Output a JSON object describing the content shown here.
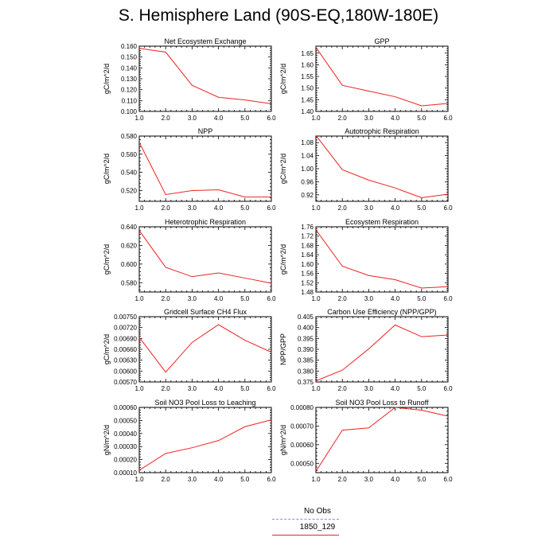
{
  "title": "S. Hemisphere Land (90S-EQ,180W-180E)",
  "xticks": [
    "1.0",
    "2.0",
    "3.0",
    "4.0",
    "5.0",
    "6.0"
  ],
  "legend": {
    "entries": [
      {
        "label": "No Obs",
        "color": "#8888ee",
        "style": "dashed"
      },
      {
        "label": "1850_129",
        "color": "#ee2222",
        "style": "solid"
      }
    ]
  },
  "chart_data": [
    {
      "type": "line",
      "title": "Net Ecosystem Exchange",
      "ylabel": "gC/m^2/d",
      "x": [
        1,
        2,
        3,
        4,
        5,
        6
      ],
      "xlim": [
        1,
        6
      ],
      "ylim": [
        0.1,
        0.16
      ],
      "yticks": [
        "0.100",
        "0.110",
        "0.120",
        "0.130",
        "0.140",
        "0.150",
        "0.160"
      ],
      "series": [
        {
          "values": [
            0.158,
            0.1545,
            0.124,
            0.113,
            0.1105,
            0.107
          ],
          "color": "#ee2222"
        }
      ]
    },
    {
      "type": "line",
      "title": "GPP",
      "ylabel": "gC/m^2/d",
      "x": [
        1,
        2,
        3,
        4,
        5,
        6
      ],
      "xlim": [
        1,
        6
      ],
      "ylim": [
        1.4,
        1.68
      ],
      "yticks": [
        "1.40",
        "1.45",
        "1.50",
        "1.55",
        "1.60",
        "1.65"
      ],
      "series": [
        {
          "values": [
            1.675,
            1.512,
            1.487,
            1.463,
            1.424,
            1.434
          ],
          "color": "#ee2222"
        }
      ]
    },
    {
      "type": "line",
      "title": "NPP",
      "ylabel": "gC/m^2/d",
      "x": [
        1,
        2,
        3,
        4,
        5,
        6
      ],
      "xlim": [
        1,
        6
      ],
      "ylim": [
        0.508,
        0.58
      ],
      "yticks": [
        "0.520",
        "0.540",
        "0.560",
        "0.580"
      ],
      "series": [
        {
          "values": [
            0.573,
            0.5155,
            0.5198,
            0.5207,
            0.5127,
            0.5127
          ],
          "color": "#ee2222"
        }
      ]
    },
    {
      "type": "line",
      "title": "Autotrophic Respiration",
      "ylabel": "gC/m^2/d",
      "x": [
        1,
        2,
        3,
        4,
        5,
        6
      ],
      "xlim": [
        1,
        6
      ],
      "ylim": [
        0.9,
        1.1
      ],
      "yticks": [
        "0.92",
        "0.96",
        "1.00",
        "1.04",
        "1.08"
      ],
      "series": [
        {
          "values": [
            1.102,
            0.997,
            0.965,
            0.941,
            0.911,
            0.922
          ],
          "color": "#ee2222"
        }
      ]
    },
    {
      "type": "line",
      "title": "Heterotrophic Respiration",
      "ylabel": "gC/m^2/d",
      "x": [
        1,
        2,
        3,
        4,
        5,
        6
      ],
      "xlim": [
        1,
        6
      ],
      "ylim": [
        0.57,
        0.64
      ],
      "yticks": [
        "0.580",
        "0.600",
        "0.620",
        "0.640"
      ],
      "series": [
        {
          "values": [
            0.636,
            0.5965,
            0.5865,
            0.5905,
            0.585,
            0.5795
          ],
          "color": "#ee2222"
        }
      ]
    },
    {
      "type": "line",
      "title": "Ecosystem Respiration",
      "ylabel": "gC/m^2/d",
      "x": [
        1,
        2,
        3,
        4,
        5,
        6
      ],
      "xlim": [
        1,
        6
      ],
      "ylim": [
        1.48,
        1.76
      ],
      "yticks": [
        "1.48",
        "1.52",
        "1.56",
        "1.60",
        "1.64",
        "1.68",
        "1.72",
        "1.76"
      ],
      "series": [
        {
          "values": [
            1.747,
            1.591,
            1.551,
            1.533,
            1.497,
            1.503
          ],
          "color": "#ee2222"
        }
      ]
    },
    {
      "type": "line",
      "title": "Gridcell Surface CH4 Flux",
      "ylabel": "gC/m^2/d",
      "x": [
        1,
        2,
        3,
        4,
        5,
        6
      ],
      "xlim": [
        1,
        6
      ],
      "ylim": [
        0.0057,
        0.0075
      ],
      "yticks": [
        "0.00570",
        "0.00600",
        "0.00630",
        "0.00660",
        "0.00690",
        "0.00720",
        "0.00750"
      ],
      "series": [
        {
          "values": [
            0.00693,
            0.00597,
            0.00679,
            0.00728,
            0.00685,
            0.00652
          ],
          "color": "#ee2222"
        }
      ]
    },
    {
      "type": "line",
      "title": "Carbon Use Efficiency (NPP/GPP)",
      "ylabel": "NPP/GPP",
      "x": [
        1,
        2,
        3,
        4,
        5,
        6
      ],
      "xlim": [
        1,
        6
      ],
      "ylim": [
        0.375,
        0.405
      ],
      "yticks": [
        "0.375",
        "0.380",
        "0.385",
        "0.390",
        "0.395",
        "0.400",
        "0.405"
      ],
      "series": [
        {
          "values": [
            0.3755,
            0.3804,
            0.3902,
            0.4012,
            0.3958,
            0.3966
          ],
          "color": "#ee2222"
        }
      ]
    },
    {
      "type": "line",
      "title": "Soil NO3 Pool Loss to Leaching",
      "ylabel": "gN/m^2/d",
      "x": [
        1,
        2,
        3,
        4,
        5,
        6
      ],
      "xlim": [
        1,
        6
      ],
      "ylim": [
        0.0001,
        0.0006
      ],
      "yticks": [
        "0.00010",
        "0.00020",
        "0.00030",
        "0.00040",
        "0.00050",
        "0.00060"
      ],
      "series": [
        {
          "values": [
            0.000118,
            0.000247,
            0.000291,
            0.000346,
            0.000452,
            0.000505
          ],
          "color": "#ee2222"
        }
      ]
    },
    {
      "type": "line",
      "title": "Soil NO3 Pool Loss to Runoff",
      "ylabel": "gN/m^2/d",
      "x": [
        1,
        2,
        3,
        4,
        5,
        6
      ],
      "xlim": [
        1,
        6
      ],
      "ylim": [
        0.00045,
        0.0008
      ],
      "yticks": [
        "0.00050",
        "0.00060",
        "0.00070",
        "0.00080"
      ],
      "series": [
        {
          "values": [
            0.000457,
            0.000678,
            0.00069,
            0.0008,
            0.000785,
            0.000753
          ],
          "color": "#ee2222"
        }
      ]
    }
  ]
}
